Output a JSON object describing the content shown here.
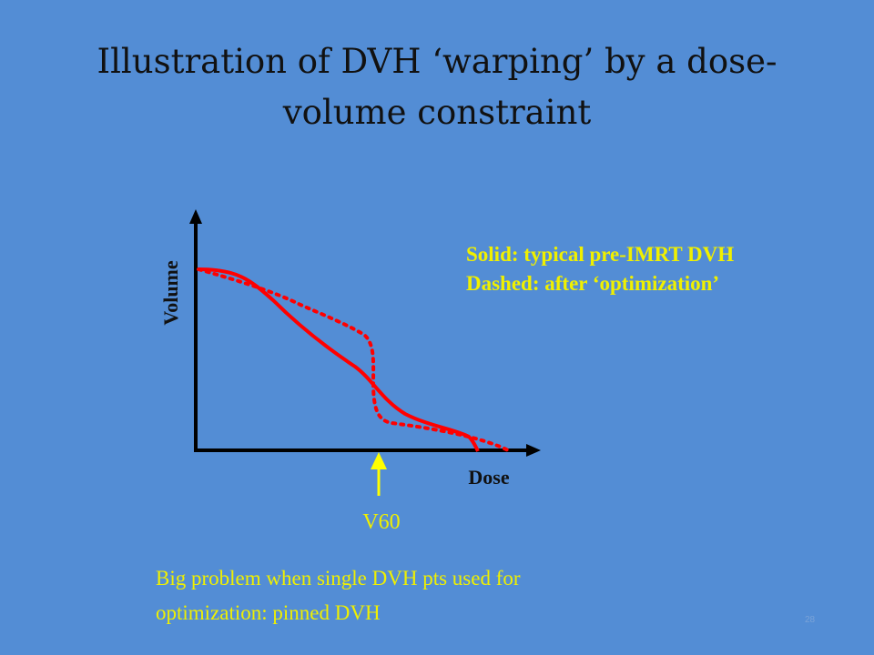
{
  "slide": {
    "title_line1": "Illustration of DVH ‘warping’ by a dose-",
    "title_line2": "volume constraint",
    "number": "28"
  },
  "diagram": {
    "axis_y_label": "Volume",
    "axis_x_label": "Dose",
    "marker_label": "V60",
    "legend_solid": "Solid: typical pre-IMRT DVH",
    "legend_dashed": "Dashed: after ‘optimization’",
    "caption_line1": "Big problem when single DVH pts used for",
    "caption_line2": "optimization:  pinned DVH",
    "colors": {
      "background": "#538dd5",
      "curve": "#ff0000",
      "axes": "#000000",
      "marker_arrow": "#ffff00",
      "label_text": "#f0f000"
    }
  }
}
